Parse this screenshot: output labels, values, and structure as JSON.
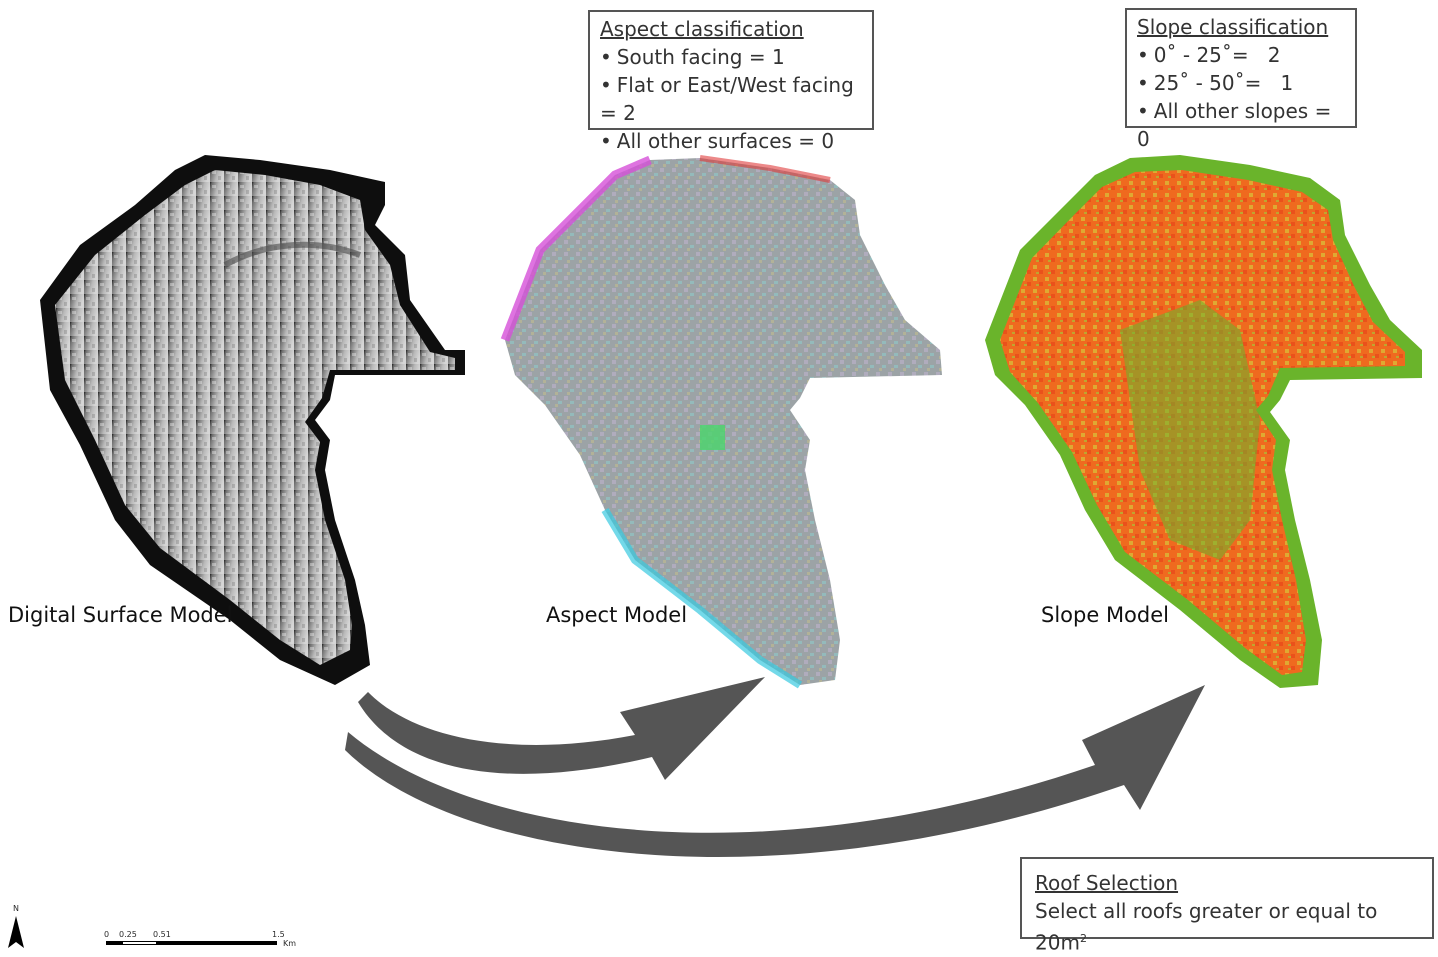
{
  "labels": {
    "dsm": "Digital Surface Model",
    "aspect": "Aspect Model",
    "slope": "Slope Model"
  },
  "aspect_box": {
    "title": "Aspect classification",
    "items": [
      "South facing = 1",
      "Flat or East/West facing = 2",
      "All other surfaces = 0"
    ]
  },
  "slope_box": {
    "title": "Slope classification",
    "items": [
      "0˚ - 25˚=   2",
      "25˚ - 50˚=   1",
      "All other slopes = 0"
    ]
  },
  "roof_box": {
    "title": "Roof Selection",
    "text": "Select all roofs greater or equal to 20m",
    "superscript": "2"
  },
  "north_arrow": {
    "letter": "N",
    "icon": "north-arrow-icon"
  },
  "scale_bar": {
    "ticks": [
      "0",
      "0.25",
      "0.51",
      "1.5"
    ],
    "unit": "Km"
  },
  "colors": {
    "dsm_dark": "#0a0a0a",
    "dsm_light": "#bcbcbc",
    "aspect_base": "#9aa2a6",
    "slope_orange": "#ef6a1f",
    "slope_green": "#6ab42b",
    "arrow": "#555555"
  }
}
